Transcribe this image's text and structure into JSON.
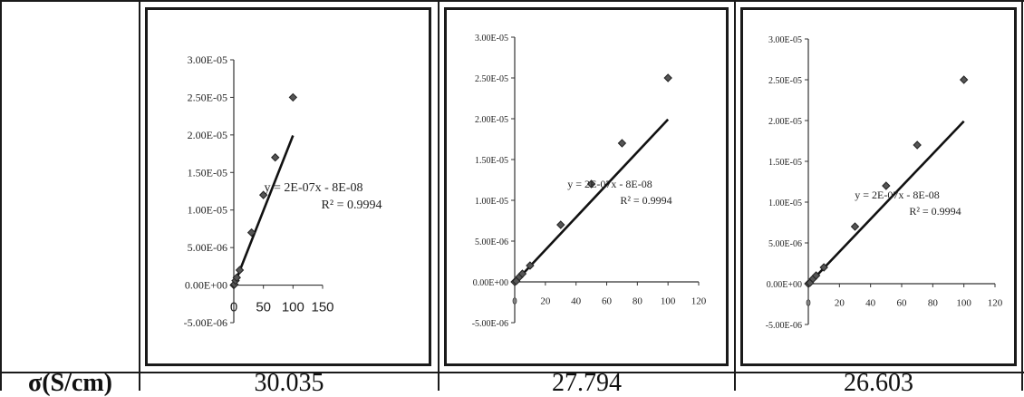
{
  "row_label": "σ(S/cm)",
  "values": [
    "30.035",
    "27.794",
    "26.603"
  ],
  "chart_data": [
    {
      "type": "scatter",
      "title": "",
      "xlabel": "",
      "ylabel": "",
      "xlim": [
        0,
        150
      ],
      "ylim": [
        -5e-06,
        3e-05
      ],
      "x_ticks": [
        "0",
        "50",
        "100",
        "150"
      ],
      "y_ticks": [
        "-5.00E-06",
        "0.00E+00",
        "5.00E-06",
        "1.00E-05",
        "1.50E-05",
        "2.00E-05",
        "2.50E-05",
        "3.00E-05"
      ],
      "equation": "y = 2E-07x - 8E-08",
      "r_squared": "R² = 0.9994",
      "x": [
        0,
        1,
        3,
        5,
        10,
        30,
        50,
        70,
        100
      ],
      "y": [
        0.0,
        1e-07,
        6e-07,
        1e-06,
        2e-06,
        7e-06,
        1.2e-05,
        1.7e-05,
        2.5e-05
      ],
      "trendline": {
        "slope": 2e-07,
        "intercept": -8e-08
      },
      "grid": false,
      "legend": "none"
    },
    {
      "type": "scatter",
      "title": "",
      "xlabel": "",
      "ylabel": "",
      "xlim": [
        0,
        120
      ],
      "ylim": [
        -5e-06,
        3e-05
      ],
      "x_ticks": [
        "0",
        "20",
        "40",
        "60",
        "80",
        "100",
        "120"
      ],
      "y_ticks": [
        "-5.00E-06",
        "0.00E+00",
        "5.00E-06",
        "1.00E-05",
        "1.50E-05",
        "2.00E-05",
        "2.50E-05",
        "3.00E-05"
      ],
      "equation": "y = 2E-07x - 8E-08",
      "r_squared": "R² = 0.9994",
      "x": [
        0,
        1,
        3,
        5,
        10,
        30,
        50,
        70,
        100
      ],
      "y": [
        0.0,
        1e-07,
        6e-07,
        1e-06,
        2e-06,
        7e-06,
        1.2e-05,
        1.7e-05,
        2.5e-05
      ],
      "trendline": {
        "slope": 2e-07,
        "intercept": -8e-08
      },
      "grid": false,
      "legend": "none"
    },
    {
      "type": "scatter",
      "title": "",
      "xlabel": "",
      "ylabel": "",
      "xlim": [
        0,
        120
      ],
      "ylim": [
        -5e-06,
        3e-05
      ],
      "x_ticks": [
        "0",
        "20",
        "40",
        "60",
        "80",
        "100",
        "120"
      ],
      "y_ticks": [
        "-5.00E-06",
        "0.00E+00",
        "5.00E-06",
        "1.00E-05",
        "1.50E-05",
        "2.00E-05",
        "2.50E-05",
        "3.00E-05"
      ],
      "equation": "y = 2E-07x - 8E-08",
      "r_squared": "R² = 0.9994",
      "x": [
        0,
        1,
        3,
        5,
        10,
        30,
        50,
        70,
        100
      ],
      "y": [
        0.0,
        1e-07,
        6e-07,
        1e-06,
        2e-06,
        7e-06,
        1.2e-05,
        1.7e-05,
        2.5e-05
      ],
      "trendline": {
        "slope": 2e-07,
        "intercept": -8e-08
      },
      "grid": false,
      "legend": "none"
    }
  ]
}
